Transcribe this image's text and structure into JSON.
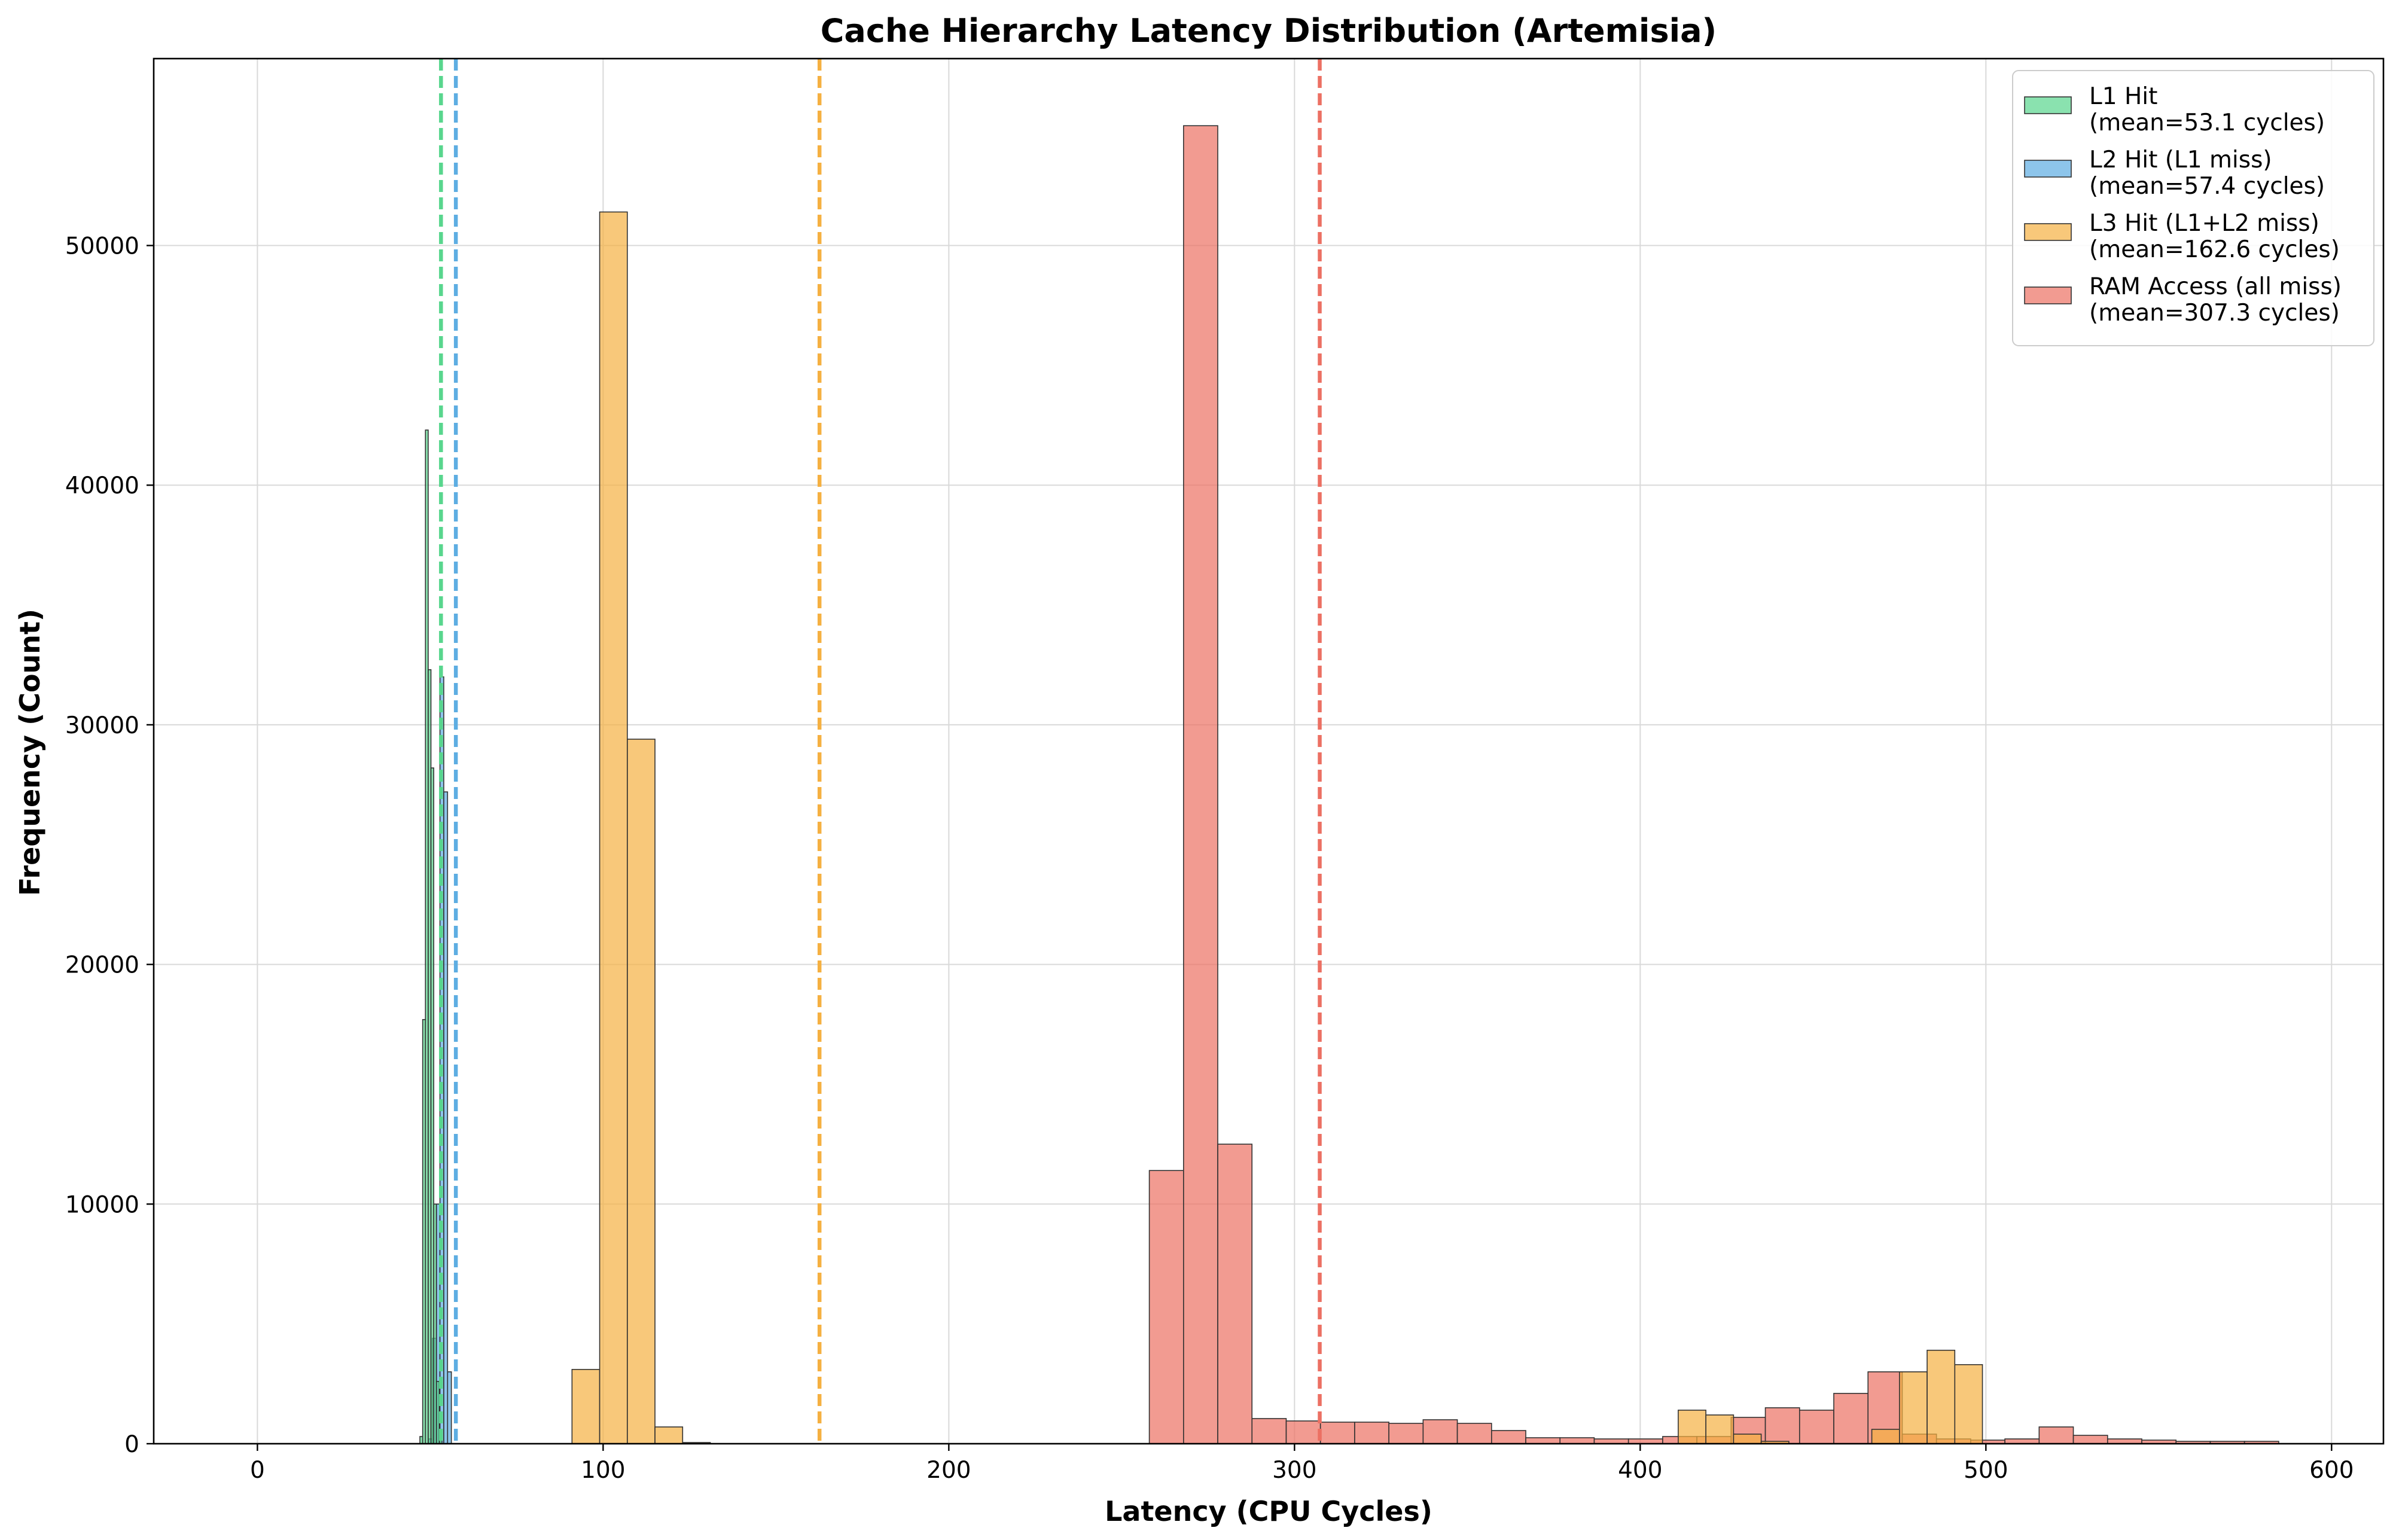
{
  "chart_data": {
    "type": "bar",
    "title": "Cache Hierarchy Latency Distribution (Artemisia)",
    "xlabel": "Latency (CPU Cycles)",
    "ylabel": "Frequency (Count)",
    "xlim": [
      -30,
      615
    ],
    "ylim": [
      0,
      57800
    ],
    "xticks": [
      0,
      100,
      200,
      300,
      400,
      500,
      600
    ],
    "yticks": [
      0,
      10000,
      20000,
      30000,
      40000,
      50000
    ],
    "grid": true,
    "legend_position": "top-right",
    "series": [
      {
        "name": "L1 Hit",
        "legend_label": [
          "L1 Hit",
          "(mean=53.1 cycles)"
        ],
        "color": "#58d68d",
        "mean": 53.1,
        "bin_width": 0.8,
        "bins": [
          {
            "x0": 47.0,
            "y": 300
          },
          {
            "x0": 47.8,
            "y": 17700
          },
          {
            "x0": 48.6,
            "y": 42300
          },
          {
            "x0": 49.4,
            "y": 32300
          },
          {
            "x0": 50.2,
            "y": 28200
          },
          {
            "x0": 51.0,
            "y": 10000
          },
          {
            "x0": 51.8,
            "y": 2600
          },
          {
            "x0": 52.6,
            "y": 600
          }
        ]
      },
      {
        "name": "L2 Hit (L1 miss)",
        "legend_label": [
          "L2 Hit (L1 miss)",
          "(mean=57.4 cycles)"
        ],
        "color": "#5dade2",
        "mean": 57.4,
        "bin_width": 1.1,
        "bins": [
          {
            "x0": 49.5,
            "y": 200
          },
          {
            "x0": 50.6,
            "y": 4400
          },
          {
            "x0": 51.7,
            "y": 10000
          },
          {
            "x0": 52.8,
            "y": 32000
          },
          {
            "x0": 53.9,
            "y": 27200
          },
          {
            "x0": 55.0,
            "y": 3000
          }
        ]
      },
      {
        "name": "L3 Hit (L1+L2 miss)",
        "legend_label": [
          "L3 Hit (L1+L2 miss)",
          "(mean=162.6 cycles)"
        ],
        "color": "#f5b041",
        "mean": 162.6,
        "bin_width": 8.0,
        "bins": [
          {
            "x0": 91,
            "y": 3100
          },
          {
            "x0": 99,
            "y": 51400
          },
          {
            "x0": 107,
            "y": 29400
          },
          {
            "x0": 115,
            "y": 700
          },
          {
            "x0": 123,
            "y": 50
          },
          {
            "x0": 411,
            "y": 1400
          },
          {
            "x0": 419,
            "y": 1200
          },
          {
            "x0": 427,
            "y": 400
          },
          {
            "x0": 435,
            "y": 100
          },
          {
            "x0": 467,
            "y": 600
          },
          {
            "x0": 475,
            "y": 3000
          },
          {
            "x0": 483,
            "y": 3900
          },
          {
            "x0": 491,
            "y": 3300
          }
        ]
      },
      {
        "name": "RAM Access (all miss)",
        "legend_label": [
          "RAM Access (all miss)",
          "(mean=307.3 cycles)"
        ],
        "color": "#ec7063",
        "mean": 307.3,
        "bin_width": 9.9,
        "bins": [
          {
            "x0": 258.0,
            "y": 11400
          },
          {
            "x0": 267.9,
            "y": 55000
          },
          {
            "x0": 277.8,
            "y": 12500
          },
          {
            "x0": 287.7,
            "y": 1050
          },
          {
            "x0": 297.6,
            "y": 950
          },
          {
            "x0": 307.5,
            "y": 900
          },
          {
            "x0": 317.4,
            "y": 900
          },
          {
            "x0": 327.3,
            "y": 850
          },
          {
            "x0": 337.2,
            "y": 1000
          },
          {
            "x0": 347.1,
            "y": 850
          },
          {
            "x0": 357.0,
            "y": 550
          },
          {
            "x0": 366.9,
            "y": 250
          },
          {
            "x0": 376.8,
            "y": 250
          },
          {
            "x0": 386.7,
            "y": 200
          },
          {
            "x0": 396.6,
            "y": 200
          },
          {
            "x0": 406.5,
            "y": 300
          },
          {
            "x0": 416.4,
            "y": 300
          },
          {
            "x0": 426.3,
            "y": 1100
          },
          {
            "x0": 436.2,
            "y": 1500
          },
          {
            "x0": 446.1,
            "y": 1400
          },
          {
            "x0": 456.0,
            "y": 2100
          },
          {
            "x0": 465.9,
            "y": 3000
          },
          {
            "x0": 475.8,
            "y": 400
          },
          {
            "x0": 485.7,
            "y": 200
          },
          {
            "x0": 495.6,
            "y": 150
          },
          {
            "x0": 505.5,
            "y": 200
          },
          {
            "x0": 515.4,
            "y": 700
          },
          {
            "x0": 525.3,
            "y": 350
          },
          {
            "x0": 535.2,
            "y": 200
          },
          {
            "x0": 545.1,
            "y": 150
          },
          {
            "x0": 555.0,
            "y": 100
          },
          {
            "x0": 564.9,
            "y": 100
          },
          {
            "x0": 574.8,
            "y": 100
          }
        ]
      }
    ]
  }
}
